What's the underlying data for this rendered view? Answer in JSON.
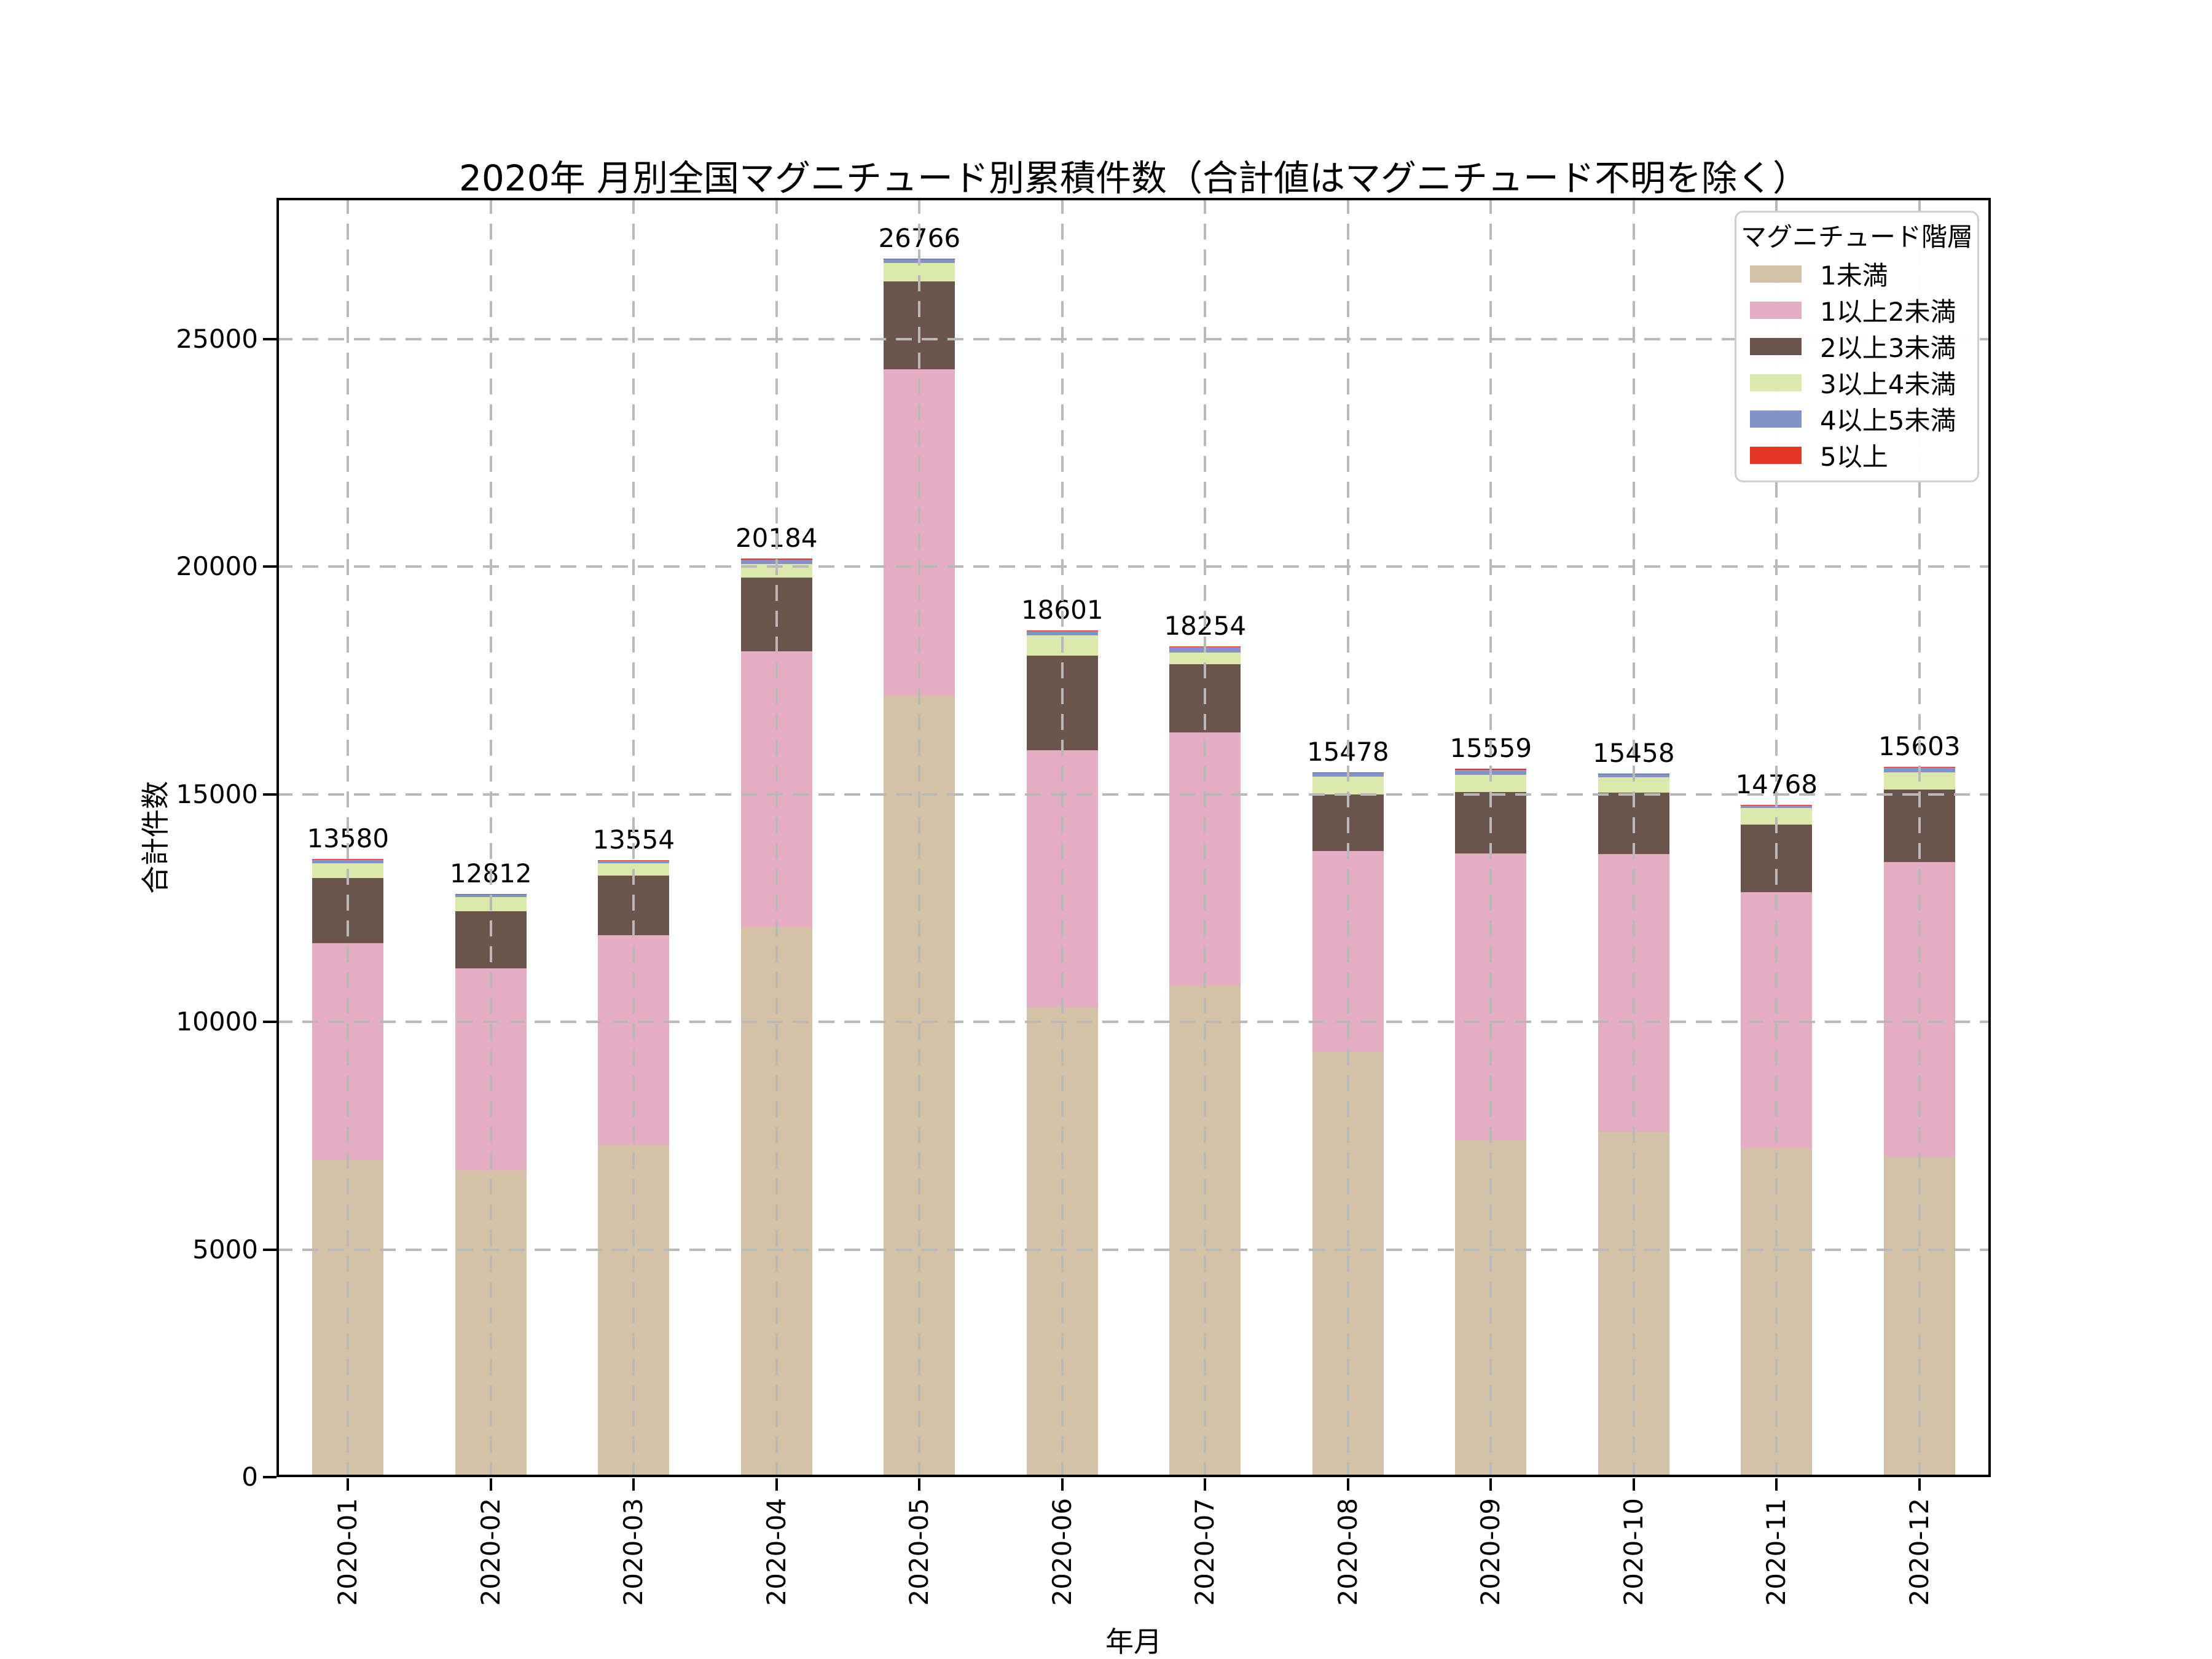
{
  "figure": {
    "title": "2020年 月別全国マグニチュード別累積件数（合計値はマグニチュード不明を除く）",
    "xlabel": "年月",
    "ylabel": "合計件数",
    "background": "#ffffff",
    "text_color": "#000000",
    "grid_color": "#b9b9b9",
    "spine_color": "#000000"
  },
  "legend": {
    "title": "マグニチュード階層",
    "position": "upper right"
  },
  "chart_data": {
    "type": "bar",
    "stacked": true,
    "title": "2020年 月別全国マグニチュード別累積件数（合計値はマグニチュード不明を除く）",
    "xlabel": "年月",
    "ylabel": "合計件数",
    "grid": "dashed",
    "legend_position": "upper right",
    "ylim": [
      0,
      28100
    ],
    "yticks": [
      0,
      5000,
      10000,
      15000,
      20000,
      25000
    ],
    "categories": [
      "2020-01",
      "2020-02",
      "2020-03",
      "2020-04",
      "2020-05",
      "2020-06",
      "2020-07",
      "2020-08",
      "2020-09",
      "2020-10",
      "2020-11",
      "2020-12"
    ],
    "series": [
      {
        "name": "1未満",
        "color": "#d3c2a6",
        "values": [
          6970,
          6740,
          7290,
          12080,
          17150,
          10320,
          10800,
          9335,
          7400,
          7590,
          7220,
          7030
        ]
      },
      {
        "name": "1以上2未満",
        "color": "#e5adc1",
        "values": [
          4760,
          4430,
          4620,
          6060,
          7190,
          5650,
          5560,
          4425,
          6300,
          6090,
          5630,
          6480
        ]
      },
      {
        "name": "2以上3未満",
        "color": "#6a544c",
        "values": [
          1430,
          1255,
          1310,
          1620,
          1930,
          2070,
          1490,
          1240,
          1355,
          1350,
          1480,
          1595
        ]
      },
      {
        "name": "3以上4未満",
        "color": "#dde9ac",
        "values": [
          325,
          310,
          270,
          290,
          405,
          450,
          260,
          390,
          370,
          340,
          370,
          370
        ]
      },
      {
        "name": "4以上5未満",
        "color": "#8294c7",
        "values": [
          77,
          60,
          50,
          107,
          73,
          90,
          120,
          75,
          114,
          73,
          55,
          108
        ]
      },
      {
        "name": "5以上",
        "color": "#e43527",
        "values": [
          18,
          17,
          14,
          27,
          18,
          21,
          24,
          13,
          20,
          15,
          13,
          20
        ]
      }
    ],
    "totals": [
      13580,
      12812,
      13554,
      20184,
      26766,
      18601,
      18254,
      15478,
      15559,
      15458,
      14768,
      15603
    ]
  }
}
